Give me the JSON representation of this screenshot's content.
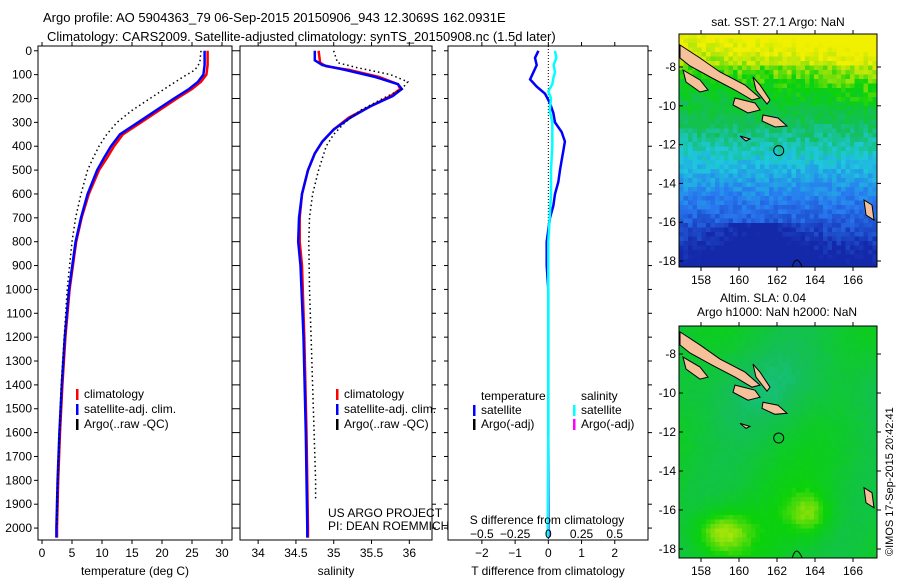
{
  "title_line1": "Argo profile: AO 5904363_79 06-Sep-2015 20150906_943 12.3069S 162.0931E",
  "title_line2": "Climatology: CARS2009. Satellite-adjusted climatology: synTS_20150908.nc (1.5d later)",
  "copyright": "©IMOS 17-Sep-2015 20:42:41",
  "colors": {
    "climatology": "#ff0000",
    "satellite": "#0000ff",
    "argo": "#000000",
    "sal_satellite": "#00ffff",
    "sal_argo": "#ff00ff",
    "land": "#f5c09a"
  },
  "chart_data": [
    {
      "type": "line",
      "name": "temperature",
      "xlabel": "temperature (deg C)",
      "xlim": [
        -0.67,
        31.67
      ],
      "ylim": [
        -20,
        2050
      ],
      "xticks": [
        "0",
        "5",
        "10",
        "15",
        "20",
        "25",
        "30"
      ],
      "yticks": [
        "0",
        "100",
        "200",
        "300",
        "400",
        "500",
        "600",
        "700",
        "800",
        "900",
        "1000",
        "1100",
        "1200",
        "1300",
        "1400",
        "1500",
        "1600",
        "1700",
        "1800",
        "1900",
        "2000"
      ],
      "legend": [
        "climatology",
        "satellite-adj. clim.",
        "Argo(..raw -QC)"
      ],
      "series": [
        {
          "name": "climatology",
          "style": "solid",
          "color": "#ff0000",
          "depth": [
            0,
            60,
            100,
            130,
            160,
            200,
            250,
            300,
            350,
            400,
            450,
            500,
            600,
            700,
            800,
            1000,
            1200,
            1400,
            1600,
            1800,
            2000,
            2040
          ],
          "values": [
            27.6,
            27.6,
            27.4,
            26.5,
            25,
            22.5,
            19.5,
            16.5,
            13.5,
            12,
            10.8,
            9.5,
            7.8,
            6.6,
            5.7,
            4.6,
            3.9,
            3.4,
            3.0,
            2.7,
            2.5,
            2.5
          ]
        },
        {
          "name": "satellite-adj. clim.",
          "style": "solid",
          "color": "#0000ff",
          "depth": [
            0,
            60,
            100,
            130,
            160,
            200,
            250,
            300,
            350,
            400,
            450,
            500,
            600,
            700,
            800,
            1000,
            1200,
            1400,
            1600,
            1800,
            2000,
            2040
          ],
          "values": [
            27.1,
            27.1,
            26.9,
            26.0,
            24.5,
            22.0,
            19.0,
            16.0,
            13.0,
            11.5,
            10.3,
            9.2,
            7.6,
            6.5,
            5.6,
            4.5,
            3.8,
            3.3,
            2.9,
            2.6,
            2.4,
            2.4
          ]
        },
        {
          "name": "Argo(..raw -QC)",
          "style": "dotted",
          "color": "#000000",
          "depth": [
            0,
            50,
            80,
            110,
            150,
            200,
            250,
            300,
            350,
            400,
            450,
            500,
            600,
            700,
            800,
            1000,
            1200,
            1400,
            1600,
            1800,
            2000
          ],
          "values": [
            26.5,
            26.3,
            25.5,
            23.5,
            21,
            18,
            15,
            12.5,
            10.8,
            9.5,
            8.5,
            7.6,
            6.5,
            5.6,
            5.0,
            4.2,
            3.7,
            3.2,
            2.9,
            2.6,
            2.4
          ]
        }
      ]
    },
    {
      "type": "line",
      "name": "salinity",
      "xlabel": "salinity",
      "xlim": [
        33.76,
        36.3
      ],
      "ylim": [
        -20,
        2050
      ],
      "xticks": [
        "34",
        "34.5",
        "35",
        "35.5",
        "36"
      ],
      "legend": [
        "climatology",
        "satellite-adj. clim.",
        "Argo(..raw -QC)"
      ],
      "annotations": [
        "US ARGO PROJECT",
        "PI: DEAN ROEMMICH"
      ],
      "series": [
        {
          "name": "climatology",
          "style": "solid",
          "color": "#ff0000",
          "depth": [
            0,
            50,
            65,
            80,
            110,
            140,
            160,
            190,
            230,
            280,
            330,
            380,
            430,
            500,
            600,
            700,
            800,
            900,
            1200,
            1600,
            2000,
            2040
          ],
          "values": [
            34.8,
            34.82,
            34.9,
            35.2,
            35.6,
            35.85,
            35.88,
            35.75,
            35.5,
            35.2,
            35.0,
            34.85,
            34.75,
            34.66,
            34.58,
            34.55,
            34.55,
            34.58,
            34.61,
            34.64,
            34.66,
            34.66
          ]
        },
        {
          "name": "satellite-adj. clim.",
          "style": "solid",
          "color": "#0000ff",
          "depth": [
            0,
            40,
            60,
            80,
            110,
            140,
            160,
            190,
            230,
            280,
            330,
            380,
            430,
            500,
            600,
            700,
            800,
            900,
            1200,
            1600,
            2000,
            2040
          ],
          "values": [
            34.75,
            34.75,
            34.85,
            35.15,
            35.55,
            35.85,
            35.9,
            35.78,
            35.5,
            35.22,
            35.0,
            34.85,
            34.75,
            34.66,
            34.58,
            34.54,
            34.53,
            34.56,
            34.6,
            34.63,
            34.65,
            34.65
          ]
        },
        {
          "name": "Argo(..raw -QC)",
          "style": "dotted",
          "color": "#000000",
          "depth": [
            0,
            50,
            70,
            100,
            130,
            160,
            200,
            250,
            300,
            350,
            400,
            500,
            600,
            700,
            800,
            1000,
            1200,
            1400,
            1600,
            1800,
            1880
          ],
          "values": [
            35.0,
            35.05,
            35.3,
            35.75,
            35.98,
            35.9,
            35.65,
            35.35,
            35.15,
            35.0,
            34.9,
            34.8,
            34.72,
            34.68,
            34.67,
            34.68,
            34.7,
            34.72,
            34.74,
            34.76,
            34.76
          ]
        }
      ]
    },
    {
      "type": "line",
      "name": "difference",
      "xlabel": "T difference from climatology",
      "xlabel2": "S difference from climatology",
      "xlim": [
        -3.02,
        3.0
      ],
      "ylim": [
        -20,
        2050
      ],
      "xticks": [
        "-2",
        "-1",
        "0",
        "1",
        "2"
      ],
      "sticks": [
        "-0.5",
        "-0.25",
        "0",
        "0.25",
        "0.5"
      ],
      "legend_headers": [
        "temperature",
        "salinity"
      ],
      "legend": [
        "satellite",
        "Argo(-adj)",
        "satellite",
        "Argo(-adj)"
      ],
      "series": [
        {
          "name": "T satellite",
          "style": "solid",
          "color": "#0000ff",
          "depth": [
            0,
            30,
            60,
            90,
            120,
            150,
            180,
            220,
            260,
            300,
            340,
            380,
            420,
            460,
            500,
            550,
            600,
            650,
            700,
            750,
            800,
            900,
            1000,
            1200,
            1600,
            2000,
            2040
          ],
          "values": [
            -0.3,
            -0.4,
            -0.35,
            -0.45,
            -0.55,
            -0.35,
            -0.1,
            0.05,
            0.15,
            0.2,
            0.4,
            0.5,
            0.45,
            0.4,
            0.35,
            0.3,
            0.2,
            0.15,
            0.05,
            0.0,
            -0.05,
            -0.05,
            0.0,
            0.0,
            0.0,
            0.0,
            0.0
          ]
        },
        {
          "name": "S satellite",
          "style": "solid",
          "color": "#00ffff",
          "depth": [
            0,
            30,
            60,
            90,
            110,
            140,
            170,
            200,
            250,
            300,
            400,
            500,
            600,
            700,
            800,
            1000,
            1200,
            1600,
            2000,
            2040
          ],
          "values": [
            0.05,
            0.06,
            0.04,
            0.05,
            0.04,
            0.03,
            0.0,
            0.02,
            0.01,
            0.03,
            0.03,
            0.02,
            0.02,
            0.01,
            0.0,
            0.0,
            0.0,
            0.0,
            -0.005,
            -0.005
          ]
        }
      ]
    }
  ],
  "maps": [
    {
      "title": "sat. SST: 27.1 Argo: NaN",
      "xticks": [
        "158",
        "160",
        "162",
        "164",
        "166"
      ],
      "yticks": [
        "-8",
        "-10",
        "-12",
        "-14",
        "-16",
        "-18"
      ],
      "kind": "sst"
    },
    {
      "title_line1": "Altim. SLA: 0.04",
      "title_line2": "Argo h1000: NaN h2000: NaN",
      "xticks": [
        "158",
        "160",
        "162",
        "164",
        "166"
      ],
      "yticks": [
        "-8",
        "-10",
        "-12",
        "-14",
        "-16",
        "-18"
      ],
      "kind": "sla"
    }
  ]
}
